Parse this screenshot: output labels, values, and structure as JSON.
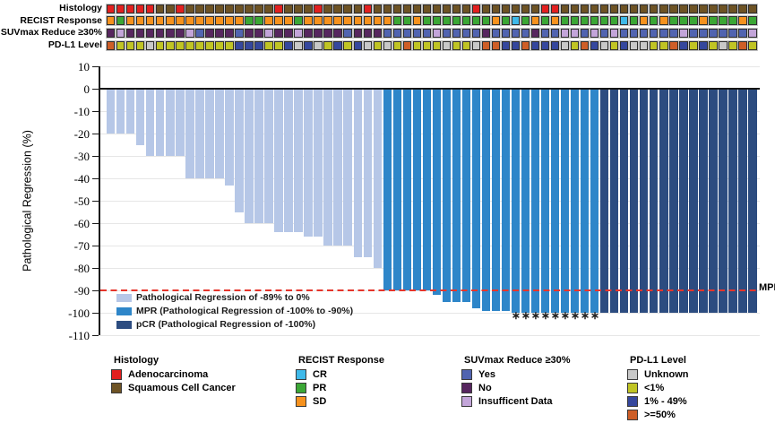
{
  "figure_title": "",
  "axis": {
    "title": "Pathological Regression (%)",
    "ticks": [
      10,
      0,
      -10,
      -20,
      -30,
      -40,
      -50,
      -60,
      -70,
      -80,
      -90,
      -100,
      -110
    ]
  },
  "chart_data": {
    "type": "bar",
    "subtype": "waterfall",
    "n_patients": 66,
    "ylabel": "Pathological Regression (%)",
    "ylim": [
      -110,
      10
    ],
    "grid": "horizontal",
    "values": [
      -20,
      -20,
      -20,
      -25,
      -30,
      -30,
      -30,
      -30,
      -40,
      -40,
      -40,
      -40,
      -43,
      -55,
      -60,
      -60,
      -60,
      -64,
      -64,
      -64,
      -66,
      -66,
      -70,
      -70,
      -70,
      -75,
      -75,
      -80,
      -90,
      -90,
      -90,
      -90,
      -90,
      -92,
      -95,
      -95,
      -95,
      -98,
      -99,
      -99,
      -99,
      -100,
      -100,
      -100,
      -100,
      -100,
      -100,
      -100,
      -100,
      -100,
      -100,
      -100,
      -100,
      -100,
      -100,
      -100,
      -100,
      -100,
      -100,
      -100,
      -100,
      -100,
      -100,
      -100,
      -100,
      -100
    ],
    "groups": [
      "L",
      "L",
      "L",
      "L",
      "L",
      "L",
      "L",
      "L",
      "L",
      "L",
      "L",
      "L",
      "L",
      "L",
      "L",
      "L",
      "L",
      "L",
      "L",
      "L",
      "L",
      "L",
      "L",
      "L",
      "L",
      "L",
      "L",
      "L",
      "M",
      "M",
      "M",
      "M",
      "M",
      "M",
      "M",
      "M",
      "M",
      "M",
      "M",
      "M",
      "M",
      "M",
      "M",
      "M",
      "M",
      "M",
      "M",
      "M",
      "M",
      "M",
      "P",
      "P",
      "P",
      "P",
      "P",
      "P",
      "P",
      "P",
      "P",
      "P",
      "P",
      "P",
      "P",
      "P",
      "P",
      "P"
    ],
    "group_colors": {
      "L": "#b6c7e7",
      "M": "#2e86c9",
      "P": "#2c4c80"
    },
    "asterisk_columns": [
      42,
      43,
      44,
      45,
      46,
      47,
      48,
      49,
      50
    ],
    "asterisk_glyph": "∗",
    "reference_line": {
      "y": -90,
      "label": "MPR",
      "color": "#e6352b",
      "style": "dashed"
    }
  },
  "chart_legend": [
    {
      "key": "L",
      "color": "#b6c7e7",
      "label": "Pathological Regression of -89% to 0%"
    },
    {
      "key": "M",
      "color": "#2e86c9",
      "label": "MPR (Pathological Regression of -100% to -90%)"
    },
    {
      "key": "P",
      "color": "#2c4c80",
      "label": "pCR (Pathological Regression of -100%)"
    }
  ],
  "annotation_tracks": [
    {
      "label": "Histology",
      "palette": {
        "R": "#e2201f",
        "B": "#6e5324"
      },
      "codes": [
        "R",
        "R",
        "R",
        "R",
        "R",
        "B",
        "B",
        "R",
        "B",
        "B",
        "B",
        "B",
        "B",
        "B",
        "B",
        "B",
        "B",
        "R",
        "B",
        "B",
        "B",
        "R",
        "B",
        "B",
        "B",
        "B",
        "R",
        "B",
        "B",
        "B",
        "B",
        "B",
        "B",
        "B",
        "B",
        "B",
        "B",
        "R",
        "B",
        "B",
        "B",
        "B",
        "B",
        "B",
        "R",
        "R",
        "B",
        "B",
        "B",
        "B",
        "B",
        "B",
        "B",
        "B",
        "B",
        "B",
        "B",
        "B",
        "B",
        "B",
        "B",
        "B",
        "B",
        "B",
        "B",
        "B"
      ]
    },
    {
      "label": "RECIST Response",
      "palette": {
        "O": "#f6921e",
        "G": "#3ba735",
        "C": "#3fb9e9"
      },
      "codes": [
        "O",
        "G",
        "O",
        "O",
        "O",
        "O",
        "O",
        "O",
        "O",
        "O",
        "O",
        "O",
        "O",
        "O",
        "G",
        "G",
        "O",
        "O",
        "O",
        "G",
        "O",
        "O",
        "O",
        "O",
        "O",
        "O",
        "O",
        "O",
        "O",
        "G",
        "G",
        "O",
        "G",
        "G",
        "G",
        "G",
        "G",
        "G",
        "G",
        "O",
        "G",
        "C",
        "G",
        "O",
        "G",
        "O",
        "G",
        "G",
        "G",
        "G",
        "G",
        "G",
        "C",
        "G",
        "O",
        "G",
        "O",
        "G",
        "G",
        "G",
        "O",
        "G",
        "G",
        "G",
        "O",
        "G"
      ]
    },
    {
      "label": "SUVmax Reduce ≥30%",
      "palette": {
        "Y": "#5164b0",
        "N": "#57265f",
        "I": "#c3a5d9"
      },
      "codes": [
        "N",
        "I",
        "N",
        "N",
        "N",
        "N",
        "N",
        "N",
        "I",
        "Y",
        "N",
        "N",
        "N",
        "Y",
        "N",
        "N",
        "I",
        "N",
        "N",
        "I",
        "N",
        "N",
        "N",
        "N",
        "Y",
        "N",
        "N",
        "N",
        "Y",
        "Y",
        "Y",
        "Y",
        "Y",
        "I",
        "Y",
        "Y",
        "Y",
        "Y",
        "N",
        "Y",
        "Y",
        "Y",
        "Y",
        "N",
        "Y",
        "Y",
        "I",
        "I",
        "Y",
        "I",
        "Y",
        "I",
        "Y",
        "Y",
        "Y",
        "Y",
        "Y",
        "Y",
        "I",
        "Y",
        "Y",
        "Y",
        "Y",
        "Y",
        "Y",
        "I"
      ]
    },
    {
      "label": "PD-L1 Level",
      "palette": {
        "U": "#c8c8c8",
        "L": "#c0c424",
        "M": "#35479d",
        "H": "#ce5e27"
      },
      "codes": [
        "H",
        "L",
        "L",
        "L",
        "U",
        "L",
        "L",
        "L",
        "L",
        "L",
        "L",
        "L",
        "L",
        "M",
        "M",
        "M",
        "L",
        "L",
        "M",
        "U",
        "M",
        "U",
        "L",
        "M",
        "L",
        "M",
        "U",
        "L",
        "U",
        "L",
        "H",
        "L",
        "L",
        "L",
        "U",
        "L",
        "L",
        "U",
        "H",
        "H",
        "M",
        "M",
        "H",
        "M",
        "M",
        "M",
        "U",
        "L",
        "H",
        "M",
        "U",
        "L",
        "M",
        "U",
        "U",
        "L",
        "L",
        "H",
        "M",
        "L",
        "M",
        "L",
        "U",
        "L",
        "H",
        "L"
      ]
    }
  ],
  "bottom_legends": [
    {
      "title": "Histology",
      "items": [
        {
          "label": "Adenocarcinoma",
          "color": "#e2201f"
        },
        {
          "label": "Squamous Cell Cancer",
          "color": "#6e5324"
        }
      ]
    },
    {
      "title": "RECIST Response",
      "items": [
        {
          "label": "CR",
          "color": "#3fb9e9"
        },
        {
          "label": "PR",
          "color": "#3ba735"
        },
        {
          "label": "SD",
          "color": "#f6921e"
        }
      ]
    },
    {
      "title": "SUVmax Reduce ≥30%",
      "items": [
        {
          "label": "Yes",
          "color": "#5164b0"
        },
        {
          "label": "No",
          "color": "#57265f"
        },
        {
          "label": "Insufficent Data",
          "color": "#c3a5d9"
        }
      ]
    },
    {
      "title": "PD-L1 Level",
      "items": [
        {
          "label": "Unknown",
          "color": "#c8c8c8"
        },
        {
          "label": "<1%",
          "color": "#c0c424"
        },
        {
          "label": "1% - 49%",
          "color": "#35479d"
        },
        {
          "label": ">=50%",
          "color": "#ce5e27"
        }
      ]
    }
  ]
}
